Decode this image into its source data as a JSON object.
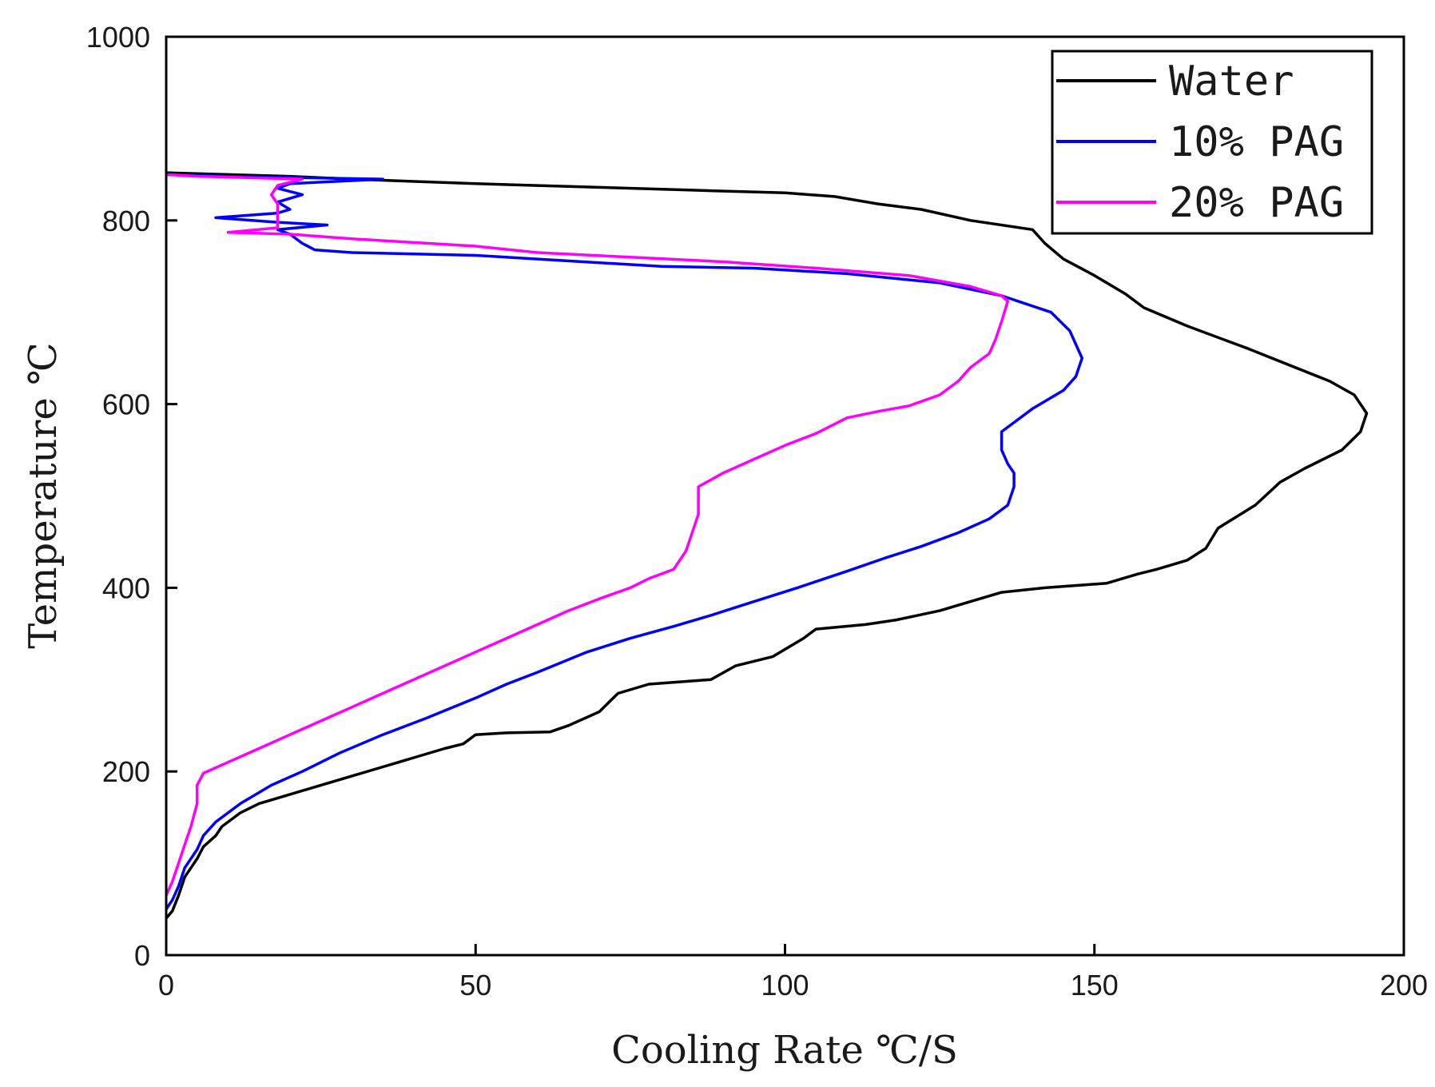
{
  "chart_data": {
    "type": "line",
    "title": "",
    "xlabel": "Cooling Rate ℃/S",
    "ylabel": "Temperature ℃",
    "xlim": [
      0,
      200
    ],
    "ylim": [
      0,
      1000
    ],
    "xticks": [
      "0",
      "50",
      "100",
      "150",
      "200"
    ],
    "yticks": [
      "0",
      "200",
      "400",
      "600",
      "800",
      "1000"
    ],
    "grid": false,
    "legend_position": "top-right",
    "series": [
      {
        "name": "Water",
        "color": "#000000",
        "points": [
          [
            0,
            40
          ],
          [
            1,
            48
          ],
          [
            2,
            65
          ],
          [
            3,
            85
          ],
          [
            5,
            105
          ],
          [
            6,
            118
          ],
          [
            8,
            130
          ],
          [
            9,
            140
          ],
          [
            12,
            155
          ],
          [
            15,
            165
          ],
          [
            20,
            175
          ],
          [
            25,
            185
          ],
          [
            30,
            195
          ],
          [
            35,
            205
          ],
          [
            40,
            215
          ],
          [
            45,
            225
          ],
          [
            48,
            230
          ],
          [
            50,
            240
          ],
          [
            55,
            242
          ],
          [
            62,
            243
          ],
          [
            65,
            250
          ],
          [
            70,
            265
          ],
          [
            73,
            285
          ],
          [
            78,
            295
          ],
          [
            88,
            300
          ],
          [
            92,
            315
          ],
          [
            98,
            325
          ],
          [
            103,
            345
          ],
          [
            105,
            355
          ],
          [
            113,
            360
          ],
          [
            118,
            365
          ],
          [
            125,
            375
          ],
          [
            130,
            385
          ],
          [
            135,
            395
          ],
          [
            142,
            400
          ],
          [
            152,
            405
          ],
          [
            157,
            415
          ],
          [
            160,
            420
          ],
          [
            165,
            430
          ],
          [
            168,
            443
          ],
          [
            170,
            465
          ],
          [
            176,
            490
          ],
          [
            180,
            515
          ],
          [
            184,
            530
          ],
          [
            190,
            550
          ],
          [
            193,
            570
          ],
          [
            194,
            590
          ],
          [
            192,
            610
          ],
          [
            188,
            625
          ],
          [
            175,
            660
          ],
          [
            165,
            685
          ],
          [
            158,
            705
          ],
          [
            155,
            720
          ],
          [
            150,
            740
          ],
          [
            145,
            758
          ],
          [
            142,
            775
          ],
          [
            140,
            790
          ],
          [
            130,
            800
          ],
          [
            122,
            812
          ],
          [
            115,
            818
          ],
          [
            108,
            826
          ],
          [
            100,
            830
          ],
          [
            85,
            833
          ],
          [
            70,
            836
          ],
          [
            50,
            840
          ],
          [
            30,
            845
          ],
          [
            20,
            848
          ],
          [
            10,
            850
          ],
          [
            0,
            852
          ]
        ]
      },
      {
        "name": "10% PAG",
        "color": "#0000ff",
        "points": [
          [
            0,
            50
          ],
          [
            1,
            60
          ],
          [
            2,
            75
          ],
          [
            3,
            95
          ],
          [
            5,
            115
          ],
          [
            6,
            130
          ],
          [
            8,
            145
          ],
          [
            12,
            165
          ],
          [
            17,
            185
          ],
          [
            22,
            200
          ],
          [
            28,
            220
          ],
          [
            35,
            240
          ],
          [
            42,
            258
          ],
          [
            50,
            280
          ],
          [
            55,
            295
          ],
          [
            60,
            308
          ],
          [
            68,
            330
          ],
          [
            75,
            345
          ],
          [
            82,
            358
          ],
          [
            88,
            370
          ],
          [
            95,
            385
          ],
          [
            102,
            400
          ],
          [
            110,
            418
          ],
          [
            116,
            432
          ],
          [
            122,
            445
          ],
          [
            128,
            460
          ],
          [
            133,
            475
          ],
          [
            136,
            490
          ],
          [
            137,
            510
          ],
          [
            137,
            525
          ],
          [
            136,
            535
          ],
          [
            135,
            550
          ],
          [
            135,
            570
          ],
          [
            140,
            595
          ],
          [
            145,
            615
          ],
          [
            147,
            630
          ],
          [
            148,
            650
          ],
          [
            146,
            680
          ],
          [
            143,
            700
          ],
          [
            135,
            718
          ],
          [
            125,
            732
          ],
          [
            110,
            742
          ],
          [
            95,
            748
          ],
          [
            80,
            750
          ],
          [
            60,
            758
          ],
          [
            50,
            762
          ],
          [
            30,
            765
          ],
          [
            24,
            768
          ],
          [
            22,
            775
          ],
          [
            20,
            785
          ],
          [
            18,
            790
          ],
          [
            26,
            795
          ],
          [
            18,
            798
          ],
          [
            8,
            803
          ],
          [
            18,
            808
          ],
          [
            20,
            812
          ],
          [
            18,
            820
          ],
          [
            22,
            828
          ],
          [
            18,
            835
          ],
          [
            20,
            840
          ],
          [
            35,
            845
          ],
          [
            10,
            848
          ],
          [
            0,
            850
          ]
        ]
      },
      {
        "name": "20% PAG",
        "color": "#ff00ff",
        "points": [
          [
            0,
            65
          ],
          [
            1,
            80
          ],
          [
            2,
            100
          ],
          [
            3,
            120
          ],
          [
            4,
            140
          ],
          [
            5,
            165
          ],
          [
            5,
            185
          ],
          [
            6,
            198
          ],
          [
            10,
            210
          ],
          [
            15,
            225
          ],
          [
            20,
            240
          ],
          [
            25,
            255
          ],
          [
            30,
            270
          ],
          [
            35,
            285
          ],
          [
            40,
            300
          ],
          [
            45,
            315
          ],
          [
            50,
            330
          ],
          [
            55,
            345
          ],
          [
            60,
            360
          ],
          [
            65,
            375
          ],
          [
            70,
            388
          ],
          [
            75,
            400
          ],
          [
            78,
            410
          ],
          [
            82,
            420
          ],
          [
            83,
            430
          ],
          [
            84,
            440
          ],
          [
            85,
            460
          ],
          [
            86,
            480
          ],
          [
            86,
            500
          ],
          [
            86,
            510
          ],
          [
            90,
            525
          ],
          [
            95,
            540
          ],
          [
            100,
            555
          ],
          [
            105,
            568
          ],
          [
            110,
            585
          ],
          [
            115,
            592
          ],
          [
            120,
            598
          ],
          [
            125,
            610
          ],
          [
            128,
            625
          ],
          [
            130,
            640
          ],
          [
            133,
            655
          ],
          [
            134,
            670
          ],
          [
            135,
            690
          ],
          [
            136,
            712
          ],
          [
            135,
            718
          ],
          [
            130,
            728
          ],
          [
            120,
            740
          ],
          [
            105,
            748
          ],
          [
            90,
            755
          ],
          [
            75,
            760
          ],
          [
            60,
            765
          ],
          [
            50,
            772
          ],
          [
            40,
            776
          ],
          [
            30,
            780
          ],
          [
            20,
            785
          ],
          [
            10,
            787
          ],
          [
            18,
            792
          ],
          [
            18,
            805
          ],
          [
            18,
            818
          ],
          [
            17,
            828
          ],
          [
            18,
            838
          ],
          [
            22,
            845
          ],
          [
            5,
            848
          ],
          [
            0,
            850
          ]
        ]
      }
    ]
  }
}
